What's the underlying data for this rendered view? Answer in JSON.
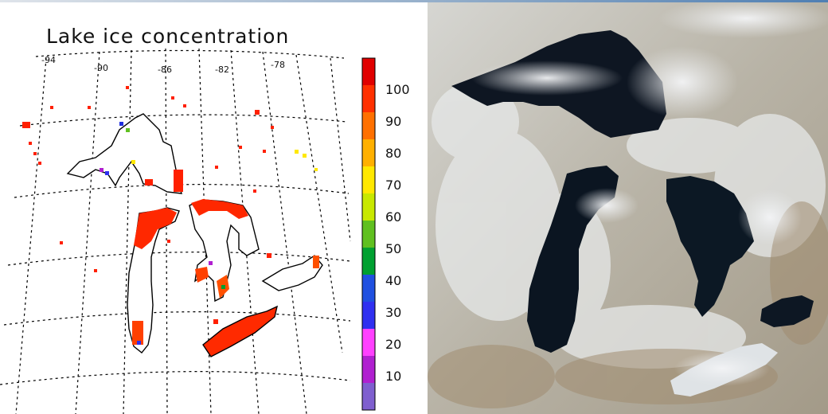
{
  "map_panel": {
    "title": "Lake ice concentration",
    "longitude_labels": [
      "-94",
      "-90",
      "-86",
      "-82",
      "-78"
    ],
    "colorbar": {
      "tick_labels": [
        "100",
        "90",
        "80",
        "70",
        "60",
        "50",
        "40",
        "30",
        "20",
        "10"
      ],
      "colors": [
        "#7f5fcf",
        "#b020d0",
        "#ff40ff",
        "#3030f0",
        "#2050e0",
        "#00a030",
        "#60c020",
        "#c8e800",
        "#ffe800",
        "#ffb000",
        "#ff7000",
        "#ff3000",
        "#e00000"
      ]
    },
    "ice_color": "#ff3000"
  },
  "satellite_panel": {
    "description_icon": "satellite-true-color-image",
    "water_color": "#0e1622",
    "snow_color": "#e4e6e6",
    "land_color": "#b7b0a0"
  }
}
